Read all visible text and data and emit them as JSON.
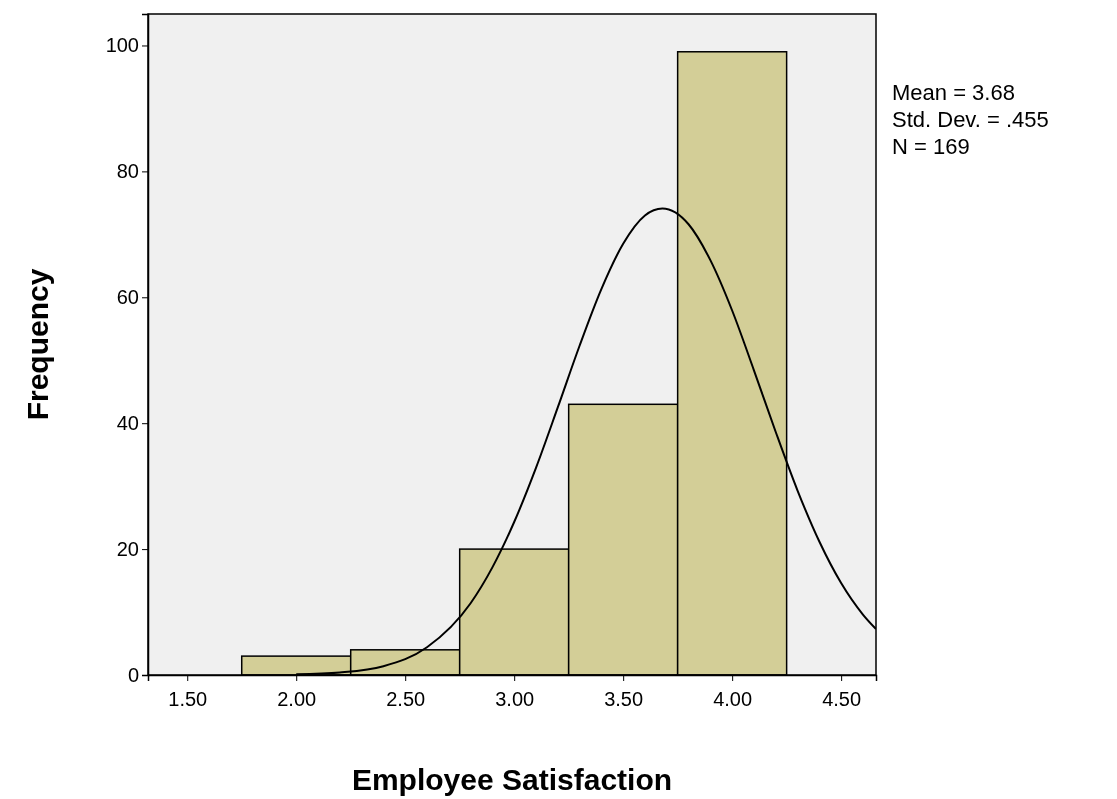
{
  "chart_data": {
    "type": "histogram",
    "xlabel": "Employee Satisfaction",
    "ylabel": "Frequency",
    "xlim": [
      1.32,
      4.66
    ],
    "ylim": [
      0,
      105
    ],
    "xticks": [
      {
        "value": 1.5,
        "label": "1.50"
      },
      {
        "value": 2,
        "label": "2.00"
      },
      {
        "value": 2.5,
        "label": "2.50"
      },
      {
        "value": 3,
        "label": "3.00"
      },
      {
        "value": 3.5,
        "label": "3.50"
      },
      {
        "value": 4,
        "label": "4.00"
      },
      {
        "value": 4.5,
        "label": "4.50"
      }
    ],
    "yticks": [
      0,
      20,
      40,
      60,
      80,
      100
    ],
    "grid": false,
    "series": [
      {
        "color": "#d3ce97",
        "bins": [
          1.75,
          2.25,
          2.75,
          3.25,
          3.75,
          4.25
        ],
        "values": [
          3,
          4,
          20,
          43,
          99
        ]
      },
      {
        "type": "line",
        "color": "#000000",
        "marker": "none",
        "line_style": "solid",
        "x": [
          2.0,
          2.2,
          2.4,
          2.6,
          2.8,
          2.9,
          3.0,
          3.1,
          3.2,
          3.3,
          3.4,
          3.5,
          3.6,
          3.68,
          3.8,
          3.9,
          4.0,
          4.1,
          4.2,
          4.3,
          4.4,
          4.5,
          4.6,
          4.66
        ],
        "values": [
          0.1,
          0.4,
          1.4,
          4.4,
          11.4,
          17.1,
          24.3,
          32.9,
          42.5,
          52.3,
          61.3,
          68.5,
          73.0,
          74.1,
          71.6,
          65.9,
          57.9,
          48.4,
          38.6,
          29.3,
          21.2,
          14.6,
          9.6,
          7.3
        ]
      }
    ],
    "annotations": [
      "Mean = 3.68",
      "Std. Dev. = .455",
      "N = 169"
    ]
  }
}
